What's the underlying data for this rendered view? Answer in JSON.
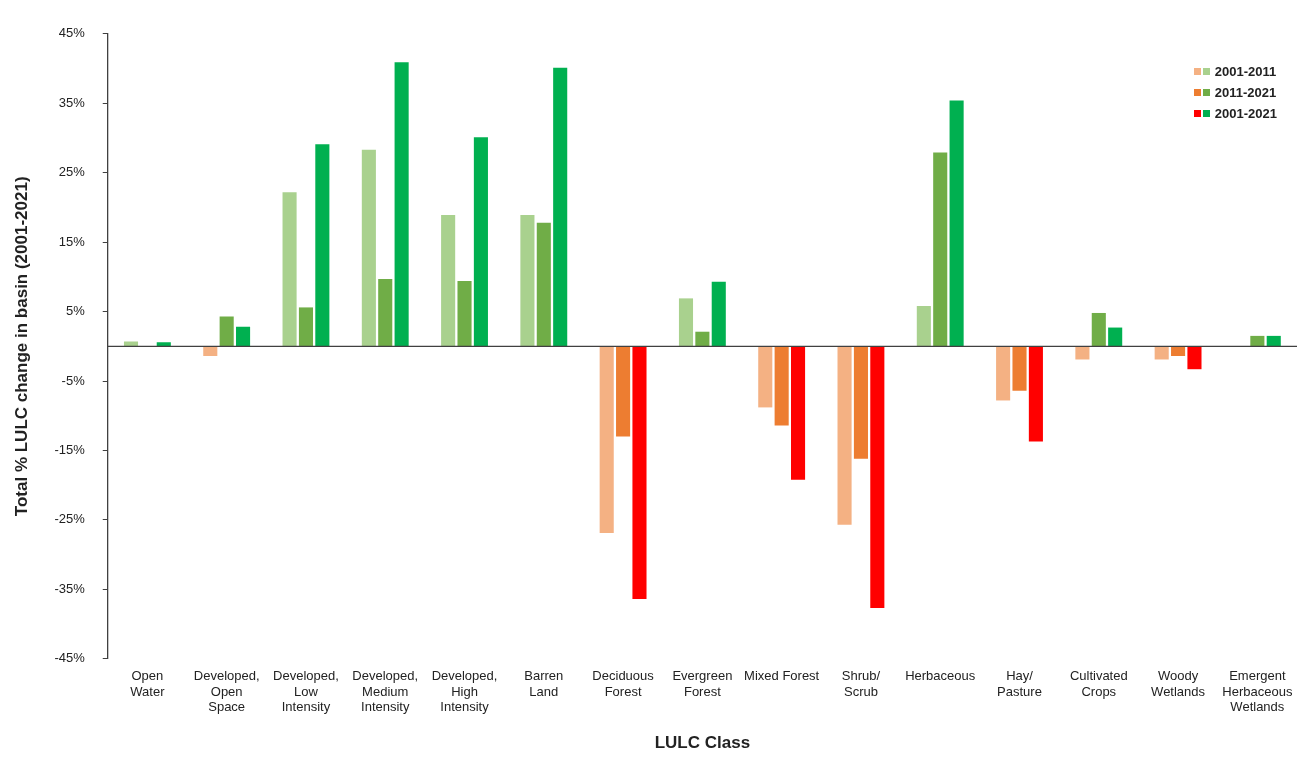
{
  "chart_data": {
    "type": "bar",
    "xlabel": "LULC Class",
    "ylabel": "Total % LULC change in basin (2001-2021)",
    "categories": [
      "Open\nWater",
      "Developed,\nOpen\nSpace",
      "Developed,\nLow\nIntensity",
      "Developed,\nMedium\nIntensity",
      "Developed,\nHigh\nIntensity",
      "Barren\nLand",
      "Deciduous\nForest",
      "Evergreen\nForest",
      "Mixed Forest",
      "Shrub/\nScrub",
      "Herbaceous",
      "Hay/\nPasture",
      "Cultivated\nCrops",
      "Woody\nWetlands",
      "Emergent\nHerbaceous\nWetlands"
    ],
    "series": [
      {
        "name": "2001-2011",
        "colors": [
          "#a9d18e",
          "#f4b183",
          "#a9d18e",
          "#a9d18e",
          "#a9d18e",
          "#a9d18e",
          "#f4b183",
          "#a9d18e",
          "#f4b183",
          "#f4b183",
          "#a9d18e",
          "#f4b183",
          "#f4b183",
          "#f4b183",
          "#a9d18e"
        ],
        "values": [
          0.7,
          -1.4,
          22.2,
          28.3,
          18.9,
          18.9,
          -26.9,
          6.9,
          -8.8,
          -25.7,
          5.8,
          -7.8,
          -1.9,
          -1.9,
          null
        ]
      },
      {
        "name": "2011-2021",
        "colors": [
          "#70ad47",
          "#70ad47",
          "#70ad47",
          "#70ad47",
          "#70ad47",
          "#70ad47",
          "#ed7d31",
          "#70ad47",
          "#ed7d31",
          "#ed7d31",
          "#70ad47",
          "#ed7d31",
          "#70ad47",
          "#ed7d31",
          "#70ad47"
        ],
        "values": [
          null,
          4.3,
          5.6,
          9.7,
          9.4,
          17.8,
          -13.0,
          2.1,
          -11.4,
          -16.2,
          27.9,
          -6.4,
          4.8,
          -1.4,
          1.5
        ]
      },
      {
        "name": "2001-2021",
        "colors": [
          "#00b050",
          "#00b050",
          "#00b050",
          "#00b050",
          "#00b050",
          "#00b050",
          "#ff0000",
          "#00b050",
          "#ff0000",
          "#ff0000",
          "#00b050",
          "#ff0000",
          "#00b050",
          "#ff0000",
          "#00b050"
        ],
        "values": [
          0.6,
          2.8,
          29.1,
          40.9,
          30.1,
          40.1,
          -36.4,
          9.3,
          -19.2,
          -37.7,
          35.4,
          -13.7,
          2.7,
          -3.3,
          1.5
        ]
      }
    ],
    "ylim": [
      -45,
      45
    ],
    "yticks": [
      {
        "value": -45,
        "label": "-45%"
      },
      {
        "value": -35,
        "label": "-35%"
      },
      {
        "value": -25,
        "label": "-25%"
      },
      {
        "value": -15,
        "label": "-15%"
      },
      {
        "value": -5,
        "label": "-5%"
      },
      {
        "value": 5,
        "label": "5%"
      },
      {
        "value": 15,
        "label": "15%"
      },
      {
        "value": 25,
        "label": "25%"
      },
      {
        "value": 35,
        "label": "35%"
      },
      {
        "value": 45,
        "label": "45%"
      }
    ],
    "grid": false,
    "legend": "top right"
  }
}
